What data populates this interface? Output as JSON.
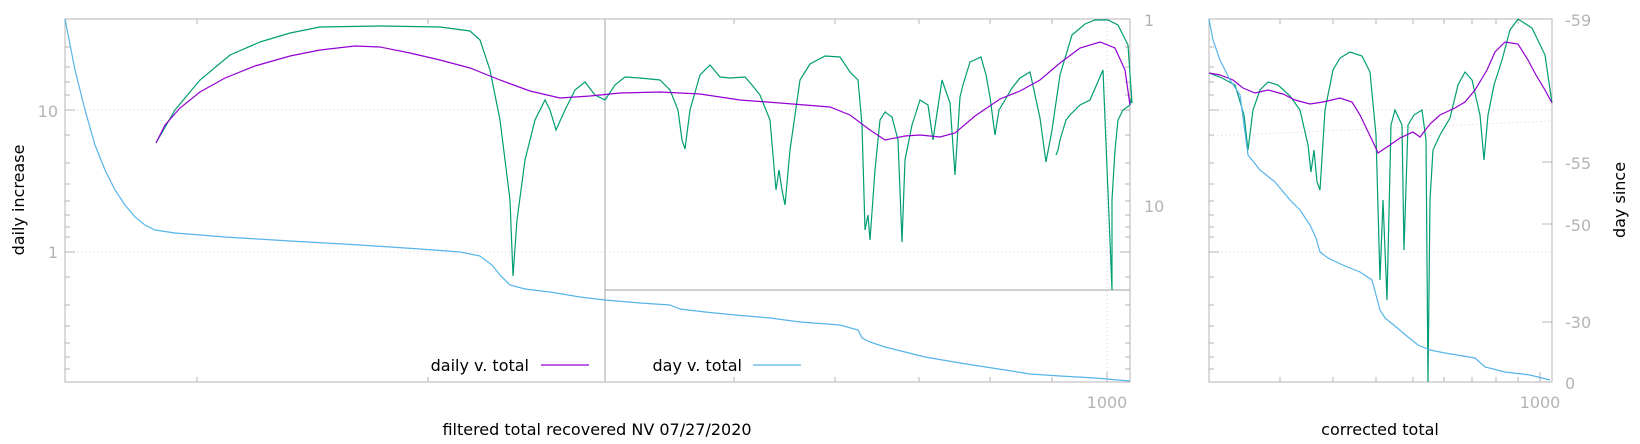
{
  "colors": {
    "daily": "#9400d3",
    "filtered": "#009e73",
    "day": "#56b4e9",
    "axis": "#b4b4b4",
    "grid": "#d0d0d0",
    "text": "#000000"
  },
  "chart_data": [
    {
      "type": "line",
      "panel": "main",
      "xlabel": "filtered total recovered NV 07/27/2020",
      "ylabel": "daily increase",
      "y2label": "",
      "xscale": "log",
      "yscale": "log",
      "x_tick_labels": [
        "1000"
      ],
      "y_tick_labels": [
        "1",
        "10"
      ],
      "y2_tick_labels": [
        "1",
        "10"
      ],
      "legend": [
        {
          "label": "daily v. total",
          "series": "daily"
        },
        {
          "label": "day v. total",
          "series": "day"
        }
      ],
      "legend_position": "bottom-center",
      "grid": true,
      "series": [
        {
          "id": "daily",
          "name": "daily v. total"
        },
        {
          "id": "day",
          "name": "day v. total"
        },
        {
          "id": "filtered"
        }
      ]
    },
    {
      "type": "line",
      "panel": "inset",
      "xlabel": "corrected total",
      "ylabel": "",
      "y2label": "day since",
      "xscale": "log",
      "yscale": "log",
      "x_tick_labels": [
        "1000"
      ],
      "y2_tick_labels": [
        "-59",
        "-55",
        "-50",
        "-30",
        "0"
      ],
      "grid": true,
      "series": [
        {
          "id": "daily"
        },
        {
          "id": "day"
        },
        {
          "id": "filtered"
        }
      ]
    }
  ]
}
